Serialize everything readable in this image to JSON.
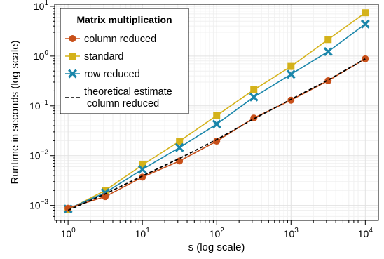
{
  "chart_data": {
    "type": "line",
    "title": "",
    "xlabel": "s (log scale)",
    "ylabel": "Runtime in seconds (log scale)",
    "x_scale": "log",
    "y_scale": "log",
    "xlim": [
      0.66,
      15000
    ],
    "ylim": [
      0.0005,
      11
    ],
    "grid": true,
    "x_ticks": [
      {
        "value": 1,
        "base": "10",
        "exp": "0"
      },
      {
        "value": 10,
        "base": "10",
        "exp": "1"
      },
      {
        "value": 100,
        "base": "10",
        "exp": "2"
      },
      {
        "value": 1000,
        "base": "10",
        "exp": "3"
      },
      {
        "value": 10000,
        "base": "10",
        "exp": "4"
      }
    ],
    "y_ticks": [
      {
        "value": 0.001,
        "base": "10",
        "exp": "−3"
      },
      {
        "value": 0.01,
        "base": "10",
        "exp": "−2"
      },
      {
        "value": 0.1,
        "base": "10",
        "exp": "−1"
      },
      {
        "value": 1,
        "base": "10",
        "exp": "0"
      },
      {
        "value": 10,
        "base": "10",
        "exp": "1"
      }
    ],
    "legend": {
      "title": "Matrix multiplication",
      "placement": "top-left"
    },
    "x": [
      1,
      3.16,
      10,
      31.6,
      100,
      316,
      1000,
      3160,
      10000
    ],
    "series": [
      {
        "name": "column reduced",
        "color": "#c8501a",
        "marker": "circle",
        "line": "solid",
        "values": [
          0.00088,
          0.0015,
          0.0037,
          0.0078,
          0.0195,
          0.057,
          0.13,
          0.32,
          0.88
        ]
      },
      {
        "name": "standard",
        "color": "#d4b21a",
        "marker": "square",
        "line": "solid",
        "values": [
          0.00082,
          0.002,
          0.0065,
          0.0195,
          0.064,
          0.21,
          0.62,
          2.15,
          7.4
        ]
      },
      {
        "name": "row reduced",
        "color": "#1a86aa",
        "marker": "cross",
        "line": "solid",
        "values": [
          0.00085,
          0.0018,
          0.0053,
          0.0145,
          0.043,
          0.15,
          0.43,
          1.23,
          4.4
        ]
      },
      {
        "name": "theoretical estimate\ncolumn reduced",
        "label_lines": [
          "theoretical estimate",
          "column reduced"
        ],
        "color": "#000000",
        "marker": "none",
        "line": "dashed",
        "values": [
          0.0008,
          0.0017,
          0.0039,
          0.0088,
          0.021,
          0.055,
          0.135,
          0.33,
          0.88
        ]
      }
    ]
  }
}
